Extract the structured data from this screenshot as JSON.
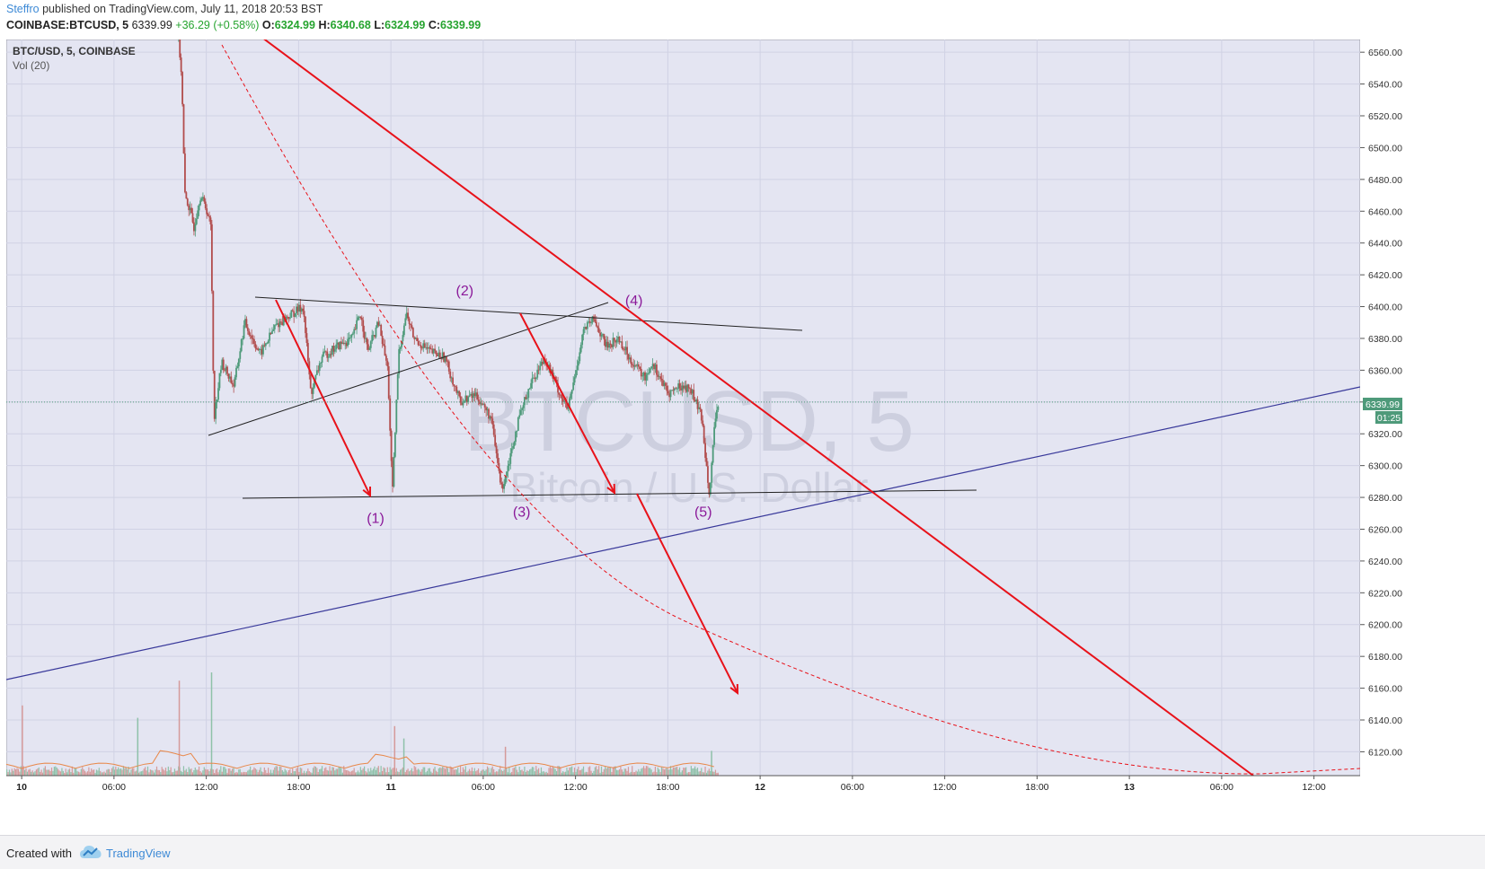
{
  "header": {
    "author": "Steffro",
    "published_text": "published on TradingView.com, July 11, 2018 20:53 BST",
    "symbol": "COINBASE:BTCUSD, 5",
    "last": "6339.99",
    "change": "+36.29 (+0.58%)",
    "o_label": "O:",
    "o": "6324.99",
    "h_label": "H:",
    "h": "6340.68",
    "l_label": "L:",
    "l": "6324.99",
    "c_label": "C:",
    "c": "6339.99"
  },
  "legend": {
    "pair": "BTC/USD, 5, COINBASE",
    "volume": "Vol (20)"
  },
  "watermark": {
    "ticker": "BTCUSD, 5",
    "description": "Bitcoin / U.S. Dollar"
  },
  "price_tag": {
    "value": "6339.99",
    "timer": "01:25"
  },
  "footer": {
    "created_with": "Created with",
    "brand": "TradingView"
  },
  "colors": {
    "background": "#e4e5f2",
    "grid": "#d0d2e4",
    "up_candle": "#4e9a7a",
    "down_candle": "#b24d4d",
    "red_lines": "#e8121a",
    "blue_line": "#38389a",
    "black_lines": "#222222",
    "wave_labels": "#8b1a9a",
    "price_tag": "#4e9a7a",
    "brand": "#3e8ad6"
  },
  "chart_data": {
    "type": "candlestick",
    "ylim": [
      6105,
      6568
    ],
    "y_ticks": [
      6560,
      6540,
      6520,
      6500,
      6480,
      6460,
      6440,
      6420,
      6400,
      6380,
      6360,
      6340,
      6320,
      6300,
      6280,
      6260,
      6240,
      6220,
      6200,
      6180,
      6160,
      6140,
      6120
    ],
    "y_tick_labels": [
      "6560.00",
      "6540.00",
      "6520.00",
      "6500.00",
      "6480.00",
      "6460.00",
      "6440.00",
      "6420.00",
      "6400.00",
      "6380.00",
      "6360.00",
      "6340.00",
      "6320.00",
      "6300.00",
      "6280.00",
      "6260.00",
      "6240.00",
      "6220.00",
      "6200.00",
      "6180.00",
      "6160.00",
      "6140.00",
      "6120.00"
    ],
    "xlim_hours": [
      -1,
      87
    ],
    "x_ticks": [
      {
        "hour": 0,
        "label": "10",
        "bold": true
      },
      {
        "hour": 6,
        "label": "06:00"
      },
      {
        "hour": 12,
        "label": "12:00"
      },
      {
        "hour": 18,
        "label": "18:00"
      },
      {
        "hour": 24,
        "label": "11",
        "bold": true
      },
      {
        "hour": 30,
        "label": "06:00"
      },
      {
        "hour": 36,
        "label": "12:00"
      },
      {
        "hour": 42,
        "label": "18:00"
      },
      {
        "hour": 48,
        "label": "12",
        "bold": true
      },
      {
        "hour": 54,
        "label": "06:00"
      },
      {
        "hour": 60,
        "label": "12:00"
      },
      {
        "hour": 66,
        "label": "18:00"
      },
      {
        "hour": 72,
        "label": "13",
        "bold": true
      },
      {
        "hour": 78,
        "label": "06:00"
      },
      {
        "hour": 84,
        "label": "12:00"
      }
    ],
    "price_path": [
      [
        10.2,
        6568
      ],
      [
        10.4,
        6545
      ],
      [
        10.6,
        6470
      ],
      [
        10.8,
        6465
      ],
      [
        11.2,
        6450
      ],
      [
        11.6,
        6470
      ],
      [
        12.0,
        6462
      ],
      [
        12.3,
        6450
      ],
      [
        12.5,
        6330
      ],
      [
        13.0,
        6365
      ],
      [
        13.8,
        6350
      ],
      [
        14.5,
        6390
      ],
      [
        15.5,
        6370
      ],
      [
        16.5,
        6388
      ],
      [
        17.5,
        6395
      ],
      [
        18.3,
        6400
      ],
      [
        18.8,
        6345
      ],
      [
        19.5,
        6368
      ],
      [
        20.5,
        6375
      ],
      [
        21.5,
        6380
      ],
      [
        22.0,
        6396
      ],
      [
        22.5,
        6372
      ],
      [
        23.2,
        6390
      ],
      [
        23.8,
        6360
      ],
      [
        24.1,
        6282
      ],
      [
        24.5,
        6370
      ],
      [
        25.0,
        6396
      ],
      [
        25.5,
        6380
      ],
      [
        26.5,
        6372
      ],
      [
        27.5,
        6368
      ],
      [
        28.5,
        6340
      ],
      [
        29.5,
        6345
      ],
      [
        30.5,
        6330
      ],
      [
        31.2,
        6285
      ],
      [
        31.6,
        6300
      ],
      [
        32.2,
        6325
      ],
      [
        33.0,
        6350
      ],
      [
        34.0,
        6368
      ],
      [
        35.0,
        6345
      ],
      [
        35.5,
        6335
      ],
      [
        36.0,
        6358
      ],
      [
        36.5,
        6385
      ],
      [
        37.2,
        6392
      ],
      [
        38.0,
        6375
      ],
      [
        38.8,
        6380
      ],
      [
        39.5,
        6368
      ],
      [
        40.5,
        6355
      ],
      [
        41.0,
        6365
      ],
      [
        42.0,
        6345
      ],
      [
        42.8,
        6350
      ],
      [
        43.5,
        6348
      ],
      [
        44.2,
        6330
      ],
      [
        44.7,
        6283
      ],
      [
        45.0,
        6320
      ],
      [
        45.3,
        6340
      ]
    ],
    "volume_spikes": [
      {
        "hour": 0.0,
        "height": 0.34
      },
      {
        "hour": 7.5,
        "height": 0.28
      },
      {
        "hour": 10.2,
        "height": 0.46
      },
      {
        "hour": 12.3,
        "height": 0.5
      },
      {
        "hour": 24.2,
        "height": 0.24
      },
      {
        "hour": 24.8,
        "height": 0.18
      },
      {
        "hour": 31.4,
        "height": 0.14
      },
      {
        "hour": 44.8,
        "height": 0.12
      }
    ],
    "annotations": {
      "wave_labels": [
        {
          "text": "(1)",
          "hour": 23.0,
          "price": 6264
        },
        {
          "text": "(2)",
          "hour": 28.8,
          "price": 6407
        },
        {
          "text": "(3)",
          "hour": 32.5,
          "price": 6268
        },
        {
          "text": "(4)",
          "hour": 39.8,
          "price": 6401
        },
        {
          "text": "(5)",
          "hour": 44.3,
          "price": 6268
        }
      ]
    }
  }
}
